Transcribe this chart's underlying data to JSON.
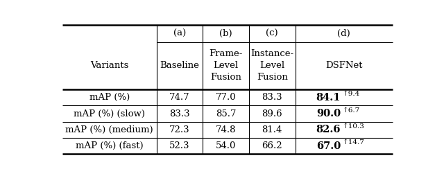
{
  "col_headers_top": [
    "(a)",
    "(b)",
    "(c)",
    "(d)"
  ],
  "col_headers_mid": [
    "Variants",
    "Baseline",
    "Frame-\nLevel\nFusion",
    "Instance-\nLevel\nFusion",
    "DSFNet"
  ],
  "rows": [
    [
      "mAP (%)",
      "74.7",
      "77.0",
      "83.3",
      "84.1",
      "↑9.4"
    ],
    [
      "mAP (%) (slow)",
      "83.3",
      "85.7",
      "89.6",
      "90.0",
      "↑6.7"
    ],
    [
      "mAP (%) (medium)",
      "72.3",
      "74.8",
      "81.4",
      "82.6",
      "↑10.3"
    ],
    [
      "mAP (%) (fast)",
      "52.3",
      "54.0",
      "66.2",
      "67.0",
      "↑14.7"
    ]
  ],
  "background_color": "#ffffff",
  "text_color": "#000000",
  "line_color": "#000000",
  "font_size": 9.5,
  "bold_font_size": 10.5,
  "sup_font_size": 7.5
}
